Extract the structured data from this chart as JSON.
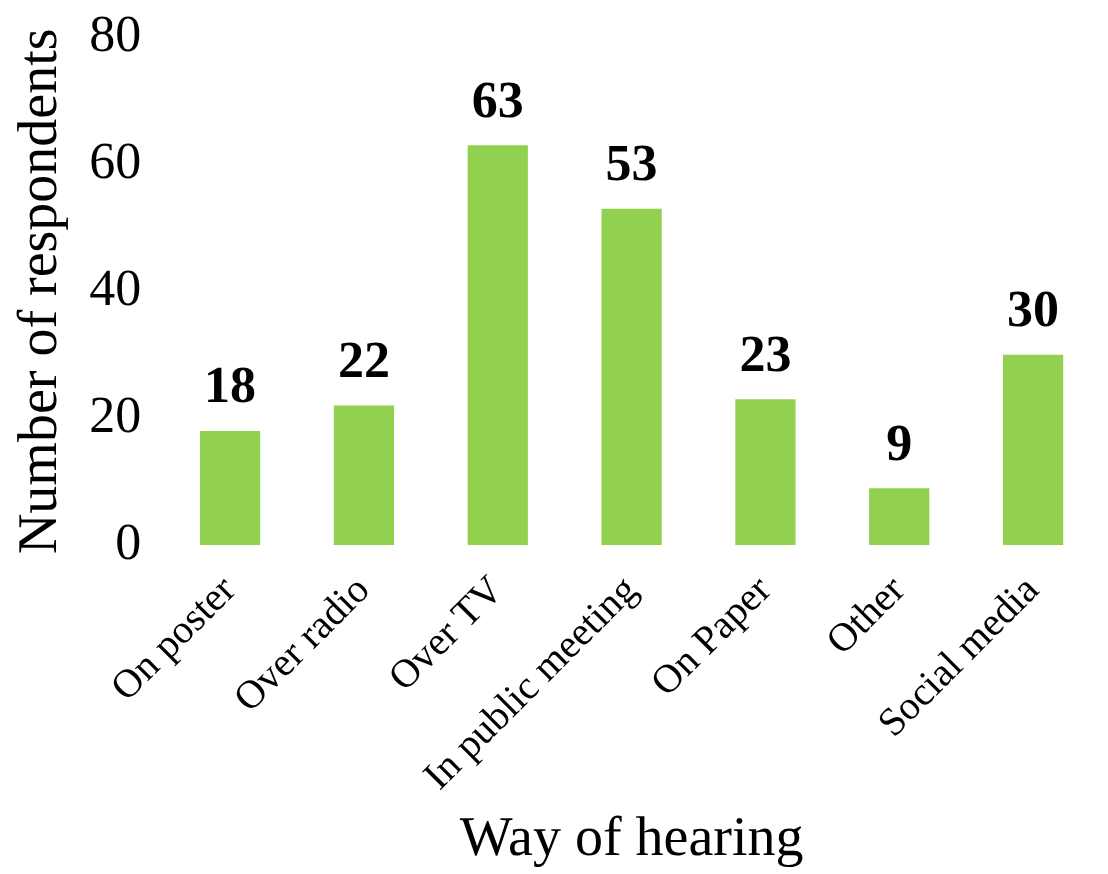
{
  "chart_data": {
    "type": "bar",
    "xlabel": "Way of hearing",
    "ylabel": "Number of respondents",
    "categories": [
      "On poster",
      "Over radio",
      "Over TV",
      "In public meeting",
      "On Paper",
      "Other",
      "Social media"
    ],
    "values": [
      18,
      22,
      63,
      53,
      23,
      9,
      30
    ],
    "color": "#92d050",
    "ylim": [
      0,
      80
    ],
    "yticks": [
      0,
      20,
      40,
      60,
      80
    ],
    "grid": false,
    "legend": false,
    "data_labels": true
  }
}
